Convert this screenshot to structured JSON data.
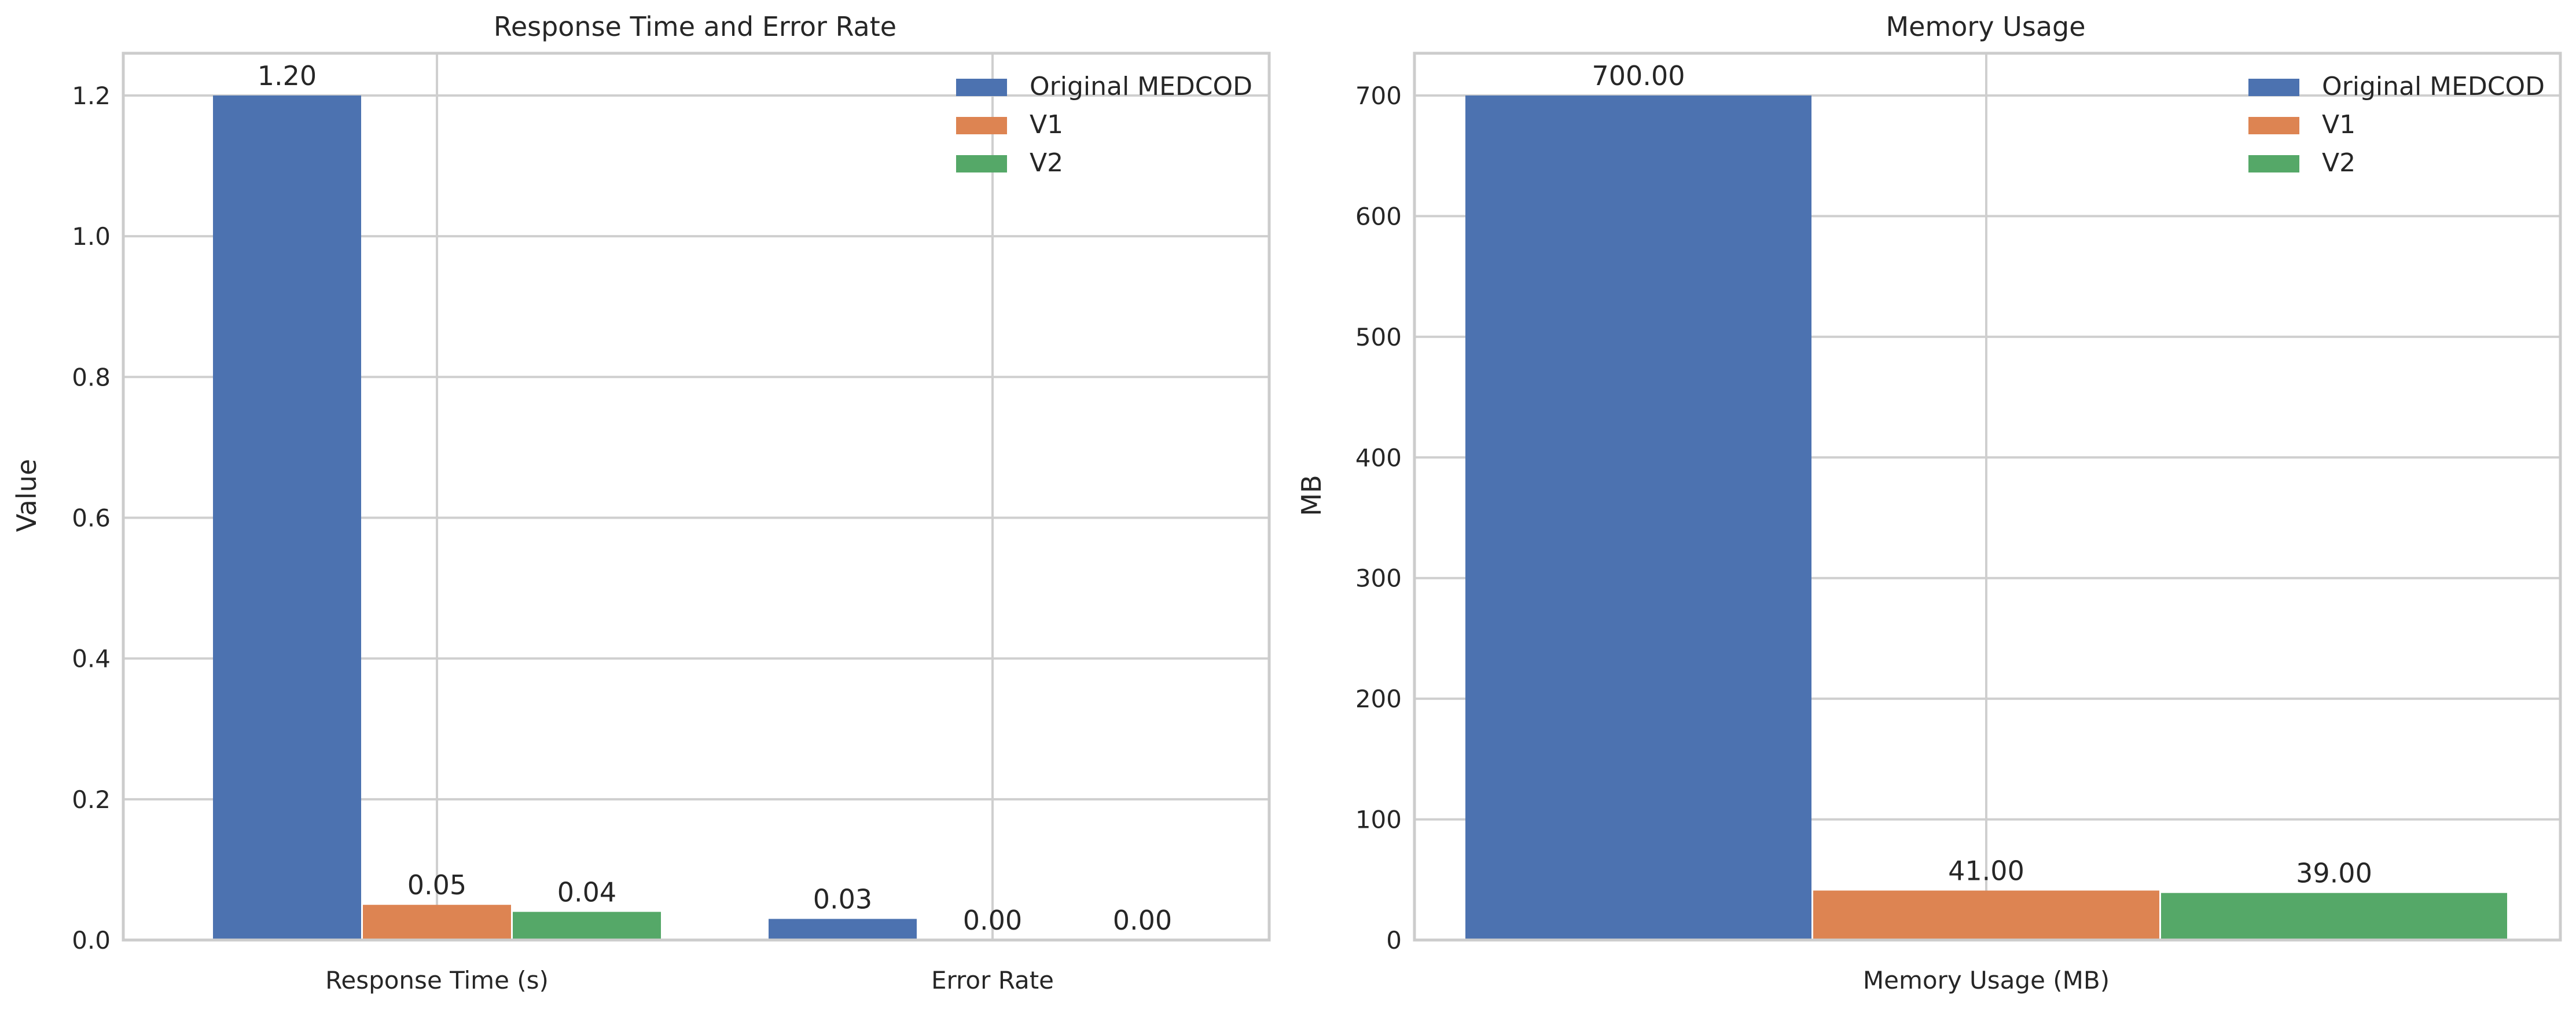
{
  "chart_data": [
    {
      "type": "bar",
      "title": "Response Time and Error Rate",
      "xlabel": "",
      "ylabel": "Value",
      "categories": [
        "Response Time (s)",
        "Error Rate"
      ],
      "series": [
        {
          "name": "Original MEDCOD",
          "values": [
            1.2,
            0.03
          ],
          "color": "#4c72b0"
        },
        {
          "name": "V1",
          "values": [
            0.05,
            0.0
          ],
          "color": "#dd8452"
        },
        {
          "name": "V2",
          "values": [
            0.04,
            0.0
          ],
          "color": "#55a868"
        }
      ],
      "value_labels": [
        [
          "1.20",
          "0.03"
        ],
        [
          "0.05",
          "0.00"
        ],
        [
          "0.04",
          "0.00"
        ]
      ],
      "ylim": [
        0,
        1.26
      ],
      "yticks": [
        0.0,
        0.2,
        0.4,
        0.6,
        0.8,
        1.0,
        1.2
      ],
      "ytick_labels": [
        "0.0",
        "0.2",
        "0.4",
        "0.6",
        "0.8",
        "1.0",
        "1.2"
      ],
      "grid": true,
      "legend_position": "top-right"
    },
    {
      "type": "bar",
      "title": "Memory Usage",
      "xlabel": "",
      "ylabel": "MB",
      "categories": [
        "Memory Usage (MB)"
      ],
      "series": [
        {
          "name": "Original MEDCOD",
          "values": [
            700
          ],
          "color": "#4c72b0"
        },
        {
          "name": "V1",
          "values": [
            41
          ],
          "color": "#dd8452"
        },
        {
          "name": "V2",
          "values": [
            39
          ],
          "color": "#55a868"
        }
      ],
      "value_labels": [
        [
          "700.00"
        ],
        [
          "41.00"
        ],
        [
          "39.00"
        ]
      ],
      "ylim": [
        0,
        735
      ],
      "yticks": [
        0,
        100,
        200,
        300,
        400,
        500,
        600,
        700
      ],
      "ytick_labels": [
        "0",
        "100",
        "200",
        "300",
        "400",
        "500",
        "600",
        "700"
      ],
      "grid": true,
      "legend_position": "top-right"
    }
  ]
}
